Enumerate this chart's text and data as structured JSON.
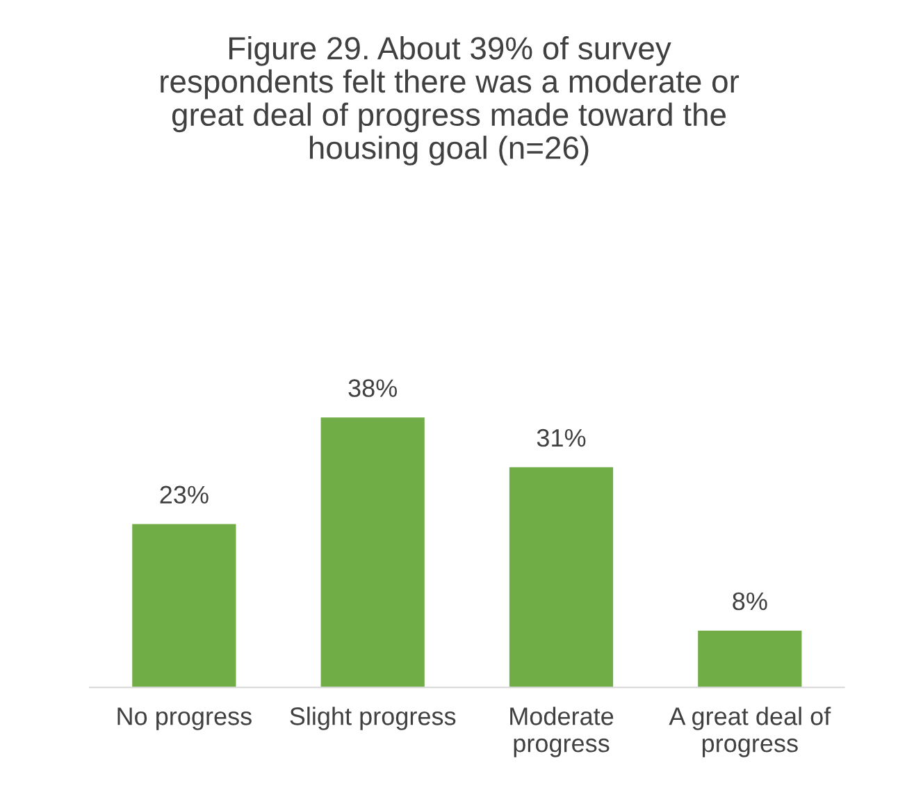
{
  "chart_data": {
    "type": "bar",
    "title": "Figure 29. About 39% of survey respondents felt there was a moderate or great deal of progress made toward the housing goal (n=26)",
    "categories": [
      "No progress",
      "Slight progress",
      "Moderate progress",
      "A great deal of progress"
    ],
    "values": [
      23,
      38,
      31,
      8
    ],
    "value_labels": [
      "23%",
      "38%",
      "31%",
      "8%"
    ],
    "color": "#70ad47"
  }
}
